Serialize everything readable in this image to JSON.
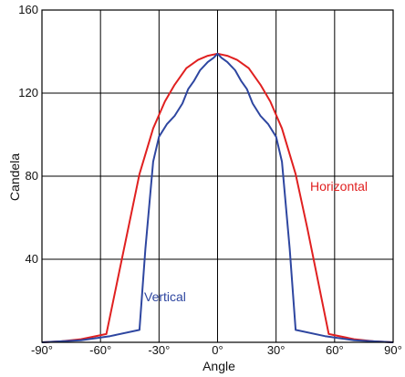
{
  "chart_data": {
    "type": "line",
    "title": "",
    "xlabel": "Angle",
    "ylabel": "Candela",
    "xlim": [
      -90,
      90
    ],
    "ylim": [
      0,
      160
    ],
    "grid": true,
    "x_ticks": [
      -90,
      -60,
      -30,
      0,
      30,
      60,
      90
    ],
    "x_tick_labels": [
      "-90°",
      "-60°",
      "-30°",
      "0°",
      "30°",
      "60°",
      "90°"
    ],
    "y_ticks": [
      40,
      80,
      120,
      160
    ],
    "y_tick_labels": [
      "40",
      "80",
      "120",
      "160"
    ],
    "series": [
      {
        "name": "Horizontal",
        "color": "#e02020",
        "x": [
          -90,
          -80,
          -70,
          -57,
          -40,
          -33,
          -27,
          -22,
          -16,
          -10,
          -5,
          0,
          5,
          10,
          16,
          22,
          27,
          33,
          40,
          46,
          57,
          70,
          80,
          90
        ],
        "y": [
          0,
          0.5,
          1.5,
          4,
          81,
          103,
          116,
          124,
          132,
          136,
          138,
          139,
          138,
          136,
          132,
          124,
          116,
          103,
          81,
          55,
          4,
          1.5,
          0.5,
          0
        ]
      },
      {
        "name": "Vertical",
        "color": "#2e46a0",
        "x": [
          -90,
          -70,
          -55,
          -40,
          -37,
          -33,
          -30,
          -26,
          -22,
          -18,
          -15,
          -12,
          -9,
          -5,
          -2,
          0,
          2,
          5,
          9,
          12,
          15,
          18,
          22,
          26,
          30,
          33,
          37,
          40,
          55,
          70,
          90
        ],
        "y": [
          0,
          1,
          3,
          6,
          45,
          87,
          99,
          105,
          109,
          115,
          122,
          126,
          131,
          135,
          137,
          139,
          137,
          135,
          131,
          126,
          122,
          115,
          109,
          105,
          99,
          87,
          45,
          6,
          3,
          1,
          0
        ]
      }
    ],
    "annotations": [
      {
        "text": "Horizontal",
        "series": "Horizontal"
      },
      {
        "text": "Vertical",
        "series": "Vertical"
      }
    ]
  }
}
